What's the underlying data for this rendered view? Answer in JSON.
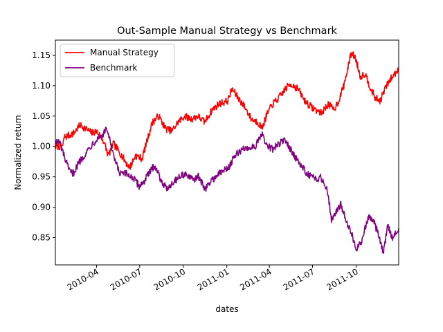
{
  "chart_data": {
    "type": "line",
    "title": "Out-Sample Manual Strategy vs Benchmark",
    "xlabel": "dates",
    "ylabel": "Normalized return",
    "xlim": [
      "2010-01-04",
      "2011-12-30"
    ],
    "ylim": [
      0.805,
      1.175
    ],
    "yticks": [
      0.85,
      0.9,
      0.95,
      1.0,
      1.05,
      1.1,
      1.15
    ],
    "ytick_labels": [
      "0.85",
      "0.90",
      "0.95",
      "1.00",
      "1.05",
      "1.10",
      "1.15"
    ],
    "xticks": [
      "2010-04-01",
      "2010-07-01",
      "2010-10-01",
      "2011-01-01",
      "2011-04-01",
      "2011-07-01",
      "2011-10-01"
    ],
    "xtick_labels": [
      "2010-04",
      "2010-07",
      "2010-10",
      "2011-01",
      "2011-04",
      "2011-07",
      "2011-10"
    ],
    "grid": false,
    "legend_position": "top-left",
    "series": [
      {
        "name": "Manual Strategy",
        "color": "#ff0000",
        "points": [
          [
            "2010-01-04",
            1.0
          ],
          [
            "2010-01-20",
            1.0
          ],
          [
            "2010-01-22",
            1.015
          ],
          [
            "2010-02-01",
            1.018
          ],
          [
            "2010-02-12",
            1.022
          ],
          [
            "2010-02-25",
            1.035
          ],
          [
            "2010-03-08",
            1.03
          ],
          [
            "2010-03-22",
            1.022
          ],
          [
            "2010-04-01",
            1.025
          ],
          [
            "2010-04-15",
            1.01
          ],
          [
            "2010-04-26",
            0.985
          ],
          [
            "2010-05-06",
            1.005
          ],
          [
            "2010-05-20",
            0.99
          ],
          [
            "2010-06-01",
            0.975
          ],
          [
            "2010-06-10",
            0.965
          ],
          [
            "2010-06-22",
            0.985
          ],
          [
            "2010-07-06",
            0.98
          ],
          [
            "2010-07-15",
            1.005
          ],
          [
            "2010-07-28",
            1.04
          ],
          [
            "2010-08-10",
            1.05
          ],
          [
            "2010-08-24",
            1.03
          ],
          [
            "2010-09-07",
            1.025
          ],
          [
            "2010-09-20",
            1.04
          ],
          [
            "2010-10-04",
            1.05
          ],
          [
            "2010-10-18",
            1.045
          ],
          [
            "2010-11-01",
            1.05
          ],
          [
            "2010-11-15",
            1.04
          ],
          [
            "2010-12-01",
            1.06
          ],
          [
            "2010-12-15",
            1.07
          ],
          [
            "2011-01-03",
            1.075
          ],
          [
            "2011-01-12",
            1.095
          ],
          [
            "2011-01-25",
            1.08
          ],
          [
            "2011-02-08",
            1.065
          ],
          [
            "2011-02-22",
            1.045
          ],
          [
            "2011-03-08",
            1.04
          ],
          [
            "2011-03-16",
            1.03
          ],
          [
            "2011-03-28",
            1.055
          ],
          [
            "2011-04-08",
            1.07
          ],
          [
            "2011-04-21",
            1.08
          ],
          [
            "2011-05-05",
            1.095
          ],
          [
            "2011-05-16",
            1.103
          ],
          [
            "2011-05-31",
            1.095
          ],
          [
            "2011-06-15",
            1.075
          ],
          [
            "2011-06-28",
            1.065
          ],
          [
            "2011-07-08",
            1.06
          ],
          [
            "2011-07-20",
            1.055
          ],
          [
            "2011-08-03",
            1.07
          ],
          [
            "2011-08-15",
            1.06
          ],
          [
            "2011-08-25",
            1.075
          ],
          [
            "2011-09-05",
            1.1
          ],
          [
            "2011-09-14",
            1.13
          ],
          [
            "2011-09-21",
            1.155
          ],
          [
            "2011-09-30",
            1.145
          ],
          [
            "2011-10-10",
            1.115
          ],
          [
            "2011-10-20",
            1.12
          ],
          [
            "2011-11-01",
            1.095
          ],
          [
            "2011-11-10",
            1.08
          ],
          [
            "2011-11-21",
            1.075
          ],
          [
            "2011-12-01",
            1.095
          ],
          [
            "2011-12-12",
            1.11
          ],
          [
            "2011-12-22",
            1.12
          ],
          [
            "2011-12-30",
            1.128
          ]
        ]
      },
      {
        "name": "Benchmark",
        "color": "#800080",
        "points": [
          [
            "2010-01-04",
            1.01
          ],
          [
            "2010-01-14",
            1.005
          ],
          [
            "2010-01-22",
            0.985
          ],
          [
            "2010-02-02",
            0.96
          ],
          [
            "2010-02-10",
            0.955
          ],
          [
            "2010-02-24",
            0.975
          ],
          [
            "2010-03-10",
            0.99
          ],
          [
            "2010-03-24",
            1.005
          ],
          [
            "2010-04-05",
            1.015
          ],
          [
            "2010-04-15",
            1.02
          ],
          [
            "2010-04-23",
            1.03
          ],
          [
            "2010-05-06",
            0.985
          ],
          [
            "2010-05-20",
            0.955
          ],
          [
            "2010-06-01",
            0.955
          ],
          [
            "2010-06-15",
            0.95
          ],
          [
            "2010-06-30",
            0.935
          ],
          [
            "2010-07-08",
            0.94
          ],
          [
            "2010-07-20",
            0.955
          ],
          [
            "2010-08-02",
            0.97
          ],
          [
            "2010-08-12",
            0.95
          ],
          [
            "2010-08-26",
            0.93
          ],
          [
            "2010-09-08",
            0.94
          ],
          [
            "2010-09-22",
            0.95
          ],
          [
            "2010-10-05",
            0.955
          ],
          [
            "2010-10-19",
            0.945
          ],
          [
            "2010-11-02",
            0.95
          ],
          [
            "2010-11-16",
            0.93
          ],
          [
            "2010-12-01",
            0.945
          ],
          [
            "2010-12-15",
            0.955
          ],
          [
            "2011-01-04",
            0.965
          ],
          [
            "2011-01-19",
            0.985
          ],
          [
            "2011-02-02",
            0.995
          ],
          [
            "2011-02-16",
            0.998
          ],
          [
            "2011-03-01",
            1.0
          ],
          [
            "2011-03-10",
            1.01
          ],
          [
            "2011-03-16",
            1.02
          ],
          [
            "2011-03-28",
            1.0
          ],
          [
            "2011-04-08",
            0.995
          ],
          [
            "2011-04-21",
            1.005
          ],
          [
            "2011-05-04",
            1.01
          ],
          [
            "2011-05-16",
            0.995
          ],
          [
            "2011-05-31",
            0.975
          ],
          [
            "2011-06-15",
            0.96
          ],
          [
            "2011-06-28",
            0.95
          ],
          [
            "2011-07-08",
            0.945
          ],
          [
            "2011-07-18",
            0.95
          ],
          [
            "2011-08-01",
            0.93
          ],
          [
            "2011-08-05",
            0.91
          ],
          [
            "2011-08-10",
            0.88
          ],
          [
            "2011-08-18",
            0.89
          ],
          [
            "2011-08-30",
            0.905
          ],
          [
            "2011-09-12",
            0.875
          ],
          [
            "2011-09-22",
            0.855
          ],
          [
            "2011-10-03",
            0.83
          ],
          [
            "2011-10-13",
            0.845
          ],
          [
            "2011-10-27",
            0.885
          ],
          [
            "2011-11-08",
            0.875
          ],
          [
            "2011-11-21",
            0.845
          ],
          [
            "2011-11-28",
            0.825
          ],
          [
            "2011-12-07",
            0.87
          ],
          [
            "2011-12-16",
            0.85
          ],
          [
            "2011-12-30",
            0.865
          ]
        ]
      }
    ]
  }
}
